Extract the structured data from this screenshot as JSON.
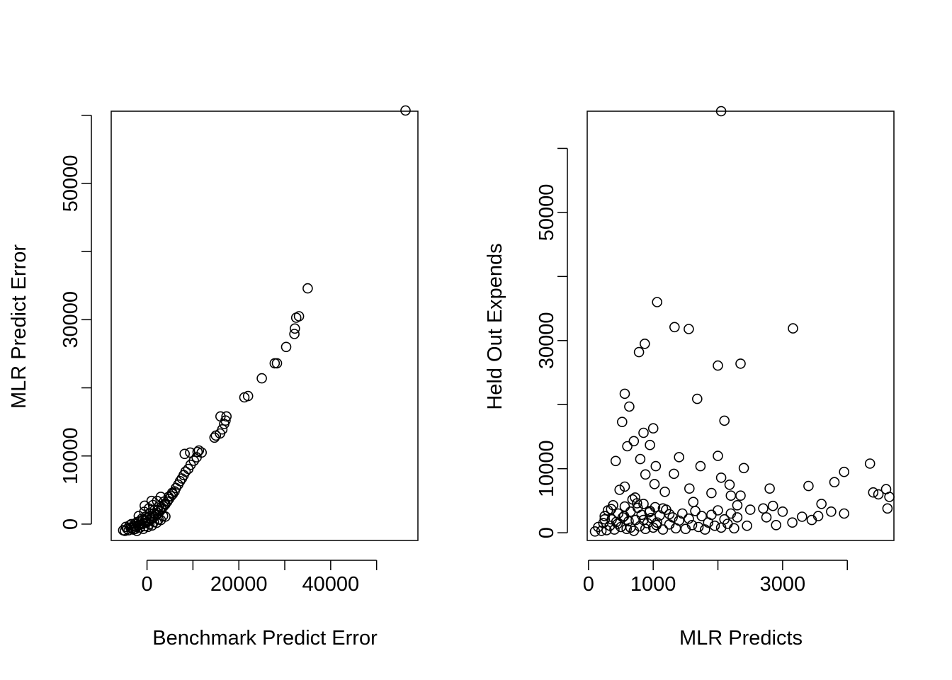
{
  "chart_data": [
    {
      "type": "scatter",
      "xlabel": "Benchmark Predict Error",
      "ylabel": "MLR Predict Error",
      "xlim": [
        -7800,
        59000
      ],
      "ylim": [
        -2400,
        60600
      ],
      "x_ticks": [
        0,
        10000,
        20000,
        30000,
        40000,
        50000
      ],
      "x_tick_labels": [
        "0",
        "",
        "20000",
        "",
        "40000",
        ""
      ],
      "y_ticks": [
        0,
        10000,
        20000,
        30000,
        40000,
        50000,
        60000
      ],
      "y_tick_labels": [
        "0",
        "10000",
        "",
        "30000",
        "",
        "50000",
        ""
      ],
      "points": [
        [
          -5200,
          -900
        ],
        [
          -4800,
          -1000
        ],
        [
          -4300,
          -700
        ],
        [
          -4000,
          -900
        ],
        [
          -3600,
          -500
        ],
        [
          -3200,
          -600
        ],
        [
          -2800,
          -300
        ],
        [
          -2400,
          -400
        ],
        [
          -2000,
          -200
        ],
        [
          -1600,
          -100
        ],
        [
          -1200,
          0
        ],
        [
          -800,
          100
        ],
        [
          -400,
          200
        ],
        [
          0,
          300
        ],
        [
          400,
          500
        ],
        [
          800,
          700
        ],
        [
          1200,
          900
        ],
        [
          1600,
          1100
        ],
        [
          2000,
          1300
        ],
        [
          2400,
          1600
        ],
        [
          2800,
          1900
        ],
        [
          3200,
          2200
        ],
        [
          3600,
          2600
        ],
        [
          4000,
          2900
        ],
        [
          4400,
          3300
        ],
        [
          4800,
          3700
        ],
        [
          5200,
          4100
        ],
        [
          5600,
          4400
        ],
        [
          6000,
          4800
        ],
        [
          -3000,
          -800
        ],
        [
          -2500,
          -700
        ],
        [
          -1500,
          -500
        ],
        [
          -500,
          -300
        ],
        [
          500,
          0
        ],
        [
          1500,
          300
        ],
        [
          2500,
          700
        ],
        [
          3500,
          1200
        ],
        [
          -3800,
          -200
        ],
        [
          -2600,
          100
        ],
        [
          -1700,
          400
        ],
        [
          -900,
          600
        ],
        [
          -100,
          900
        ],
        [
          700,
          1200
        ],
        [
          1500,
          1600
        ],
        [
          2300,
          2000
        ],
        [
          3100,
          2500
        ],
        [
          3900,
          3000
        ],
        [
          -4600,
          -400
        ],
        [
          -3400,
          0
        ],
        [
          -2100,
          300
        ],
        [
          -1100,
          800
        ],
        [
          -300,
          1100
        ],
        [
          600,
          1500
        ],
        [
          1700,
          2100
        ],
        [
          2600,
          2600
        ],
        [
          3700,
          3300
        ],
        [
          4700,
          4000
        ],
        [
          5500,
          4600
        ],
        [
          -2200,
          -1000
        ],
        [
          -800,
          -700
        ],
        [
          200,
          -400
        ],
        [
          1100,
          -200
        ],
        [
          2100,
          200
        ],
        [
          3000,
          600
        ],
        [
          4000,
          1100
        ],
        [
          -1800,
          1200
        ],
        [
          -600,
          1800
        ],
        [
          400,
          2300
        ],
        [
          1300,
          2800
        ],
        [
          2200,
          3400
        ],
        [
          3000,
          4000
        ],
        [
          1000,
          3400
        ],
        [
          -500,
          2700
        ],
        [
          6300,
          5300
        ],
        [
          6800,
          5800
        ],
        [
          7200,
          6300
        ],
        [
          7600,
          6700
        ],
        [
          8000,
          7200
        ],
        [
          8400,
          7700
        ],
        [
          9000,
          8100
        ],
        [
          9500,
          8700
        ],
        [
          10200,
          9300
        ],
        [
          10800,
          9800
        ],
        [
          8200,
          10300
        ],
        [
          9400,
          10500
        ],
        [
          11000,
          10600
        ],
        [
          11900,
          10500
        ],
        [
          11300,
          10800
        ],
        [
          14700,
          12700
        ],
        [
          15000,
          13000
        ],
        [
          15900,
          13300
        ],
        [
          16400,
          13900
        ],
        [
          16800,
          14700
        ],
        [
          17100,
          15200
        ],
        [
          17300,
          15800
        ],
        [
          16000,
          15800
        ],
        [
          21200,
          18600
        ],
        [
          22000,
          18800
        ],
        [
          25000,
          21400
        ],
        [
          27800,
          23600
        ],
        [
          28300,
          23600
        ],
        [
          30300,
          26000
        ],
        [
          32100,
          27900
        ],
        [
          32200,
          28700
        ],
        [
          32500,
          30300
        ],
        [
          33100,
          30500
        ],
        [
          35000,
          34600
        ],
        [
          56300,
          60700
        ]
      ]
    },
    {
      "type": "scatter",
      "xlabel": "MLR Predicts",
      "ylabel": "Held Out Expends",
      "xlim": [
        -20,
        4720
      ],
      "ylim": [
        -1200,
        65800
      ],
      "x_ticks": [
        0,
        1000,
        2000,
        3000,
        4000
      ],
      "x_tick_labels": [
        "0",
        "1000",
        "",
        "3000",
        ""
      ],
      "y_ticks": [
        0,
        10000,
        20000,
        30000,
        40000,
        50000,
        60000
      ],
      "y_tick_labels": [
        "0",
        "10000",
        "",
        "30000",
        "",
        "50000",
        ""
      ],
      "points": [
        [
          100,
          200
        ],
        [
          150,
          900
        ],
        [
          200,
          300
        ],
        [
          230,
          1500
        ],
        [
          250,
          2600
        ],
        [
          280,
          400
        ],
        [
          300,
          3500
        ],
        [
          330,
          1100
        ],
        [
          360,
          2100
        ],
        [
          380,
          4300
        ],
        [
          400,
          500
        ],
        [
          430,
          1700
        ],
        [
          460,
          3000
        ],
        [
          480,
          6700
        ],
        [
          500,
          900
        ],
        [
          530,
          2400
        ],
        [
          560,
          4100
        ],
        [
          590,
          600
        ],
        [
          620,
          1800
        ],
        [
          650,
          3300
        ],
        [
          680,
          5200
        ],
        [
          700,
          300
        ],
        [
          730,
          2000
        ],
        [
          760,
          3900
        ],
        [
          790,
          1000
        ],
        [
          820,
          2800
        ],
        [
          850,
          4500
        ],
        [
          880,
          600
        ],
        [
          910,
          1500
        ],
        [
          940,
          3200
        ],
        [
          970,
          2300
        ],
        [
          1000,
          800
        ],
        [
          1030,
          4000
        ],
        [
          1060,
          1600
        ],
        [
          1100,
          2700
        ],
        [
          1150,
          500
        ],
        [
          1200,
          3600
        ],
        [
          1250,
          1300
        ],
        [
          1300,
          2400
        ],
        [
          1350,
          700
        ],
        [
          1400,
          1900
        ],
        [
          1450,
          3000
        ],
        [
          1500,
          600
        ],
        [
          1550,
          2200
        ],
        [
          1600,
          1200
        ],
        [
          1650,
          3400
        ],
        [
          1700,
          900
        ],
        [
          1750,
          2600
        ],
        [
          1800,
          500
        ],
        [
          1850,
          1600
        ],
        [
          1900,
          2800
        ],
        [
          1950,
          1100
        ],
        [
          2000,
          3500
        ],
        [
          2050,
          800
        ],
        [
          2100,
          2100
        ],
        [
          2150,
          1400
        ],
        [
          2200,
          3000
        ],
        [
          2250,
          700
        ],
        [
          2300,
          2400
        ],
        [
          250,
          2100
        ],
        [
          350,
          3700
        ],
        [
          450,
          1400
        ],
        [
          550,
          2600
        ],
        [
          650,
          800
        ],
        [
          750,
          4600
        ],
        [
          850,
          2000
        ],
        [
          950,
          3400
        ],
        [
          1050,
          1200
        ],
        [
          1150,
          3800
        ],
        [
          1250,
          2900
        ],
        [
          420,
          11200
        ],
        [
          560,
          7200
        ],
        [
          720,
          5500
        ],
        [
          880,
          9100
        ],
        [
          1020,
          7600
        ],
        [
          1180,
          6400
        ],
        [
          1320,
          9200
        ],
        [
          1560,
          6900
        ],
        [
          1620,
          4800
        ],
        [
          1900,
          6200
        ],
        [
          2050,
          8600
        ],
        [
          2200,
          5800
        ],
        [
          600,
          13500
        ],
        [
          700,
          14300
        ],
        [
          800,
          11500
        ],
        [
          950,
          13700
        ],
        [
          1040,
          10400
        ],
        [
          1400,
          11800
        ],
        [
          1730,
          10400
        ],
        [
          2000,
          12000
        ],
        [
          850,
          15600
        ],
        [
          1000,
          16300
        ],
        [
          520,
          17300
        ],
        [
          560,
          21700
        ],
        [
          630,
          19700
        ],
        [
          2100,
          17500
        ],
        [
          1680,
          20900
        ],
        [
          1550,
          31800
        ],
        [
          3160,
          31900
        ],
        [
          1330,
          32100
        ],
        [
          780,
          28200
        ],
        [
          870,
          29500
        ],
        [
          2000,
          26100
        ],
        [
          2350,
          26400
        ],
        [
          1060,
          36000
        ],
        [
          2400,
          10100
        ],
        [
          3600,
          4500
        ],
        [
          3950,
          9500
        ],
        [
          3400,
          7300
        ],
        [
          3800,
          7900
        ],
        [
          4350,
          10800
        ],
        [
          4400,
          6300
        ],
        [
          4480,
          6000
        ],
        [
          4600,
          6800
        ],
        [
          4650,
          5600
        ],
        [
          4620,
          3800
        ],
        [
          3950,
          3000
        ],
        [
          3750,
          3300
        ],
        [
          3550,
          2600
        ],
        [
          3450,
          2000
        ],
        [
          3300,
          2500
        ],
        [
          3150,
          1600
        ],
        [
          3000,
          3300
        ],
        [
          2900,
          1200
        ],
        [
          2850,
          4200
        ],
        [
          2800,
          6900
        ],
        [
          2700,
          3800
        ],
        [
          2450,
          1100
        ],
        [
          2350,
          5800
        ],
        [
          2300,
          4300
        ],
        [
          2180,
          7500
        ],
        [
          2500,
          3600
        ],
        [
          2750,
          2400
        ],
        [
          2050,
          65800
        ]
      ]
    }
  ]
}
